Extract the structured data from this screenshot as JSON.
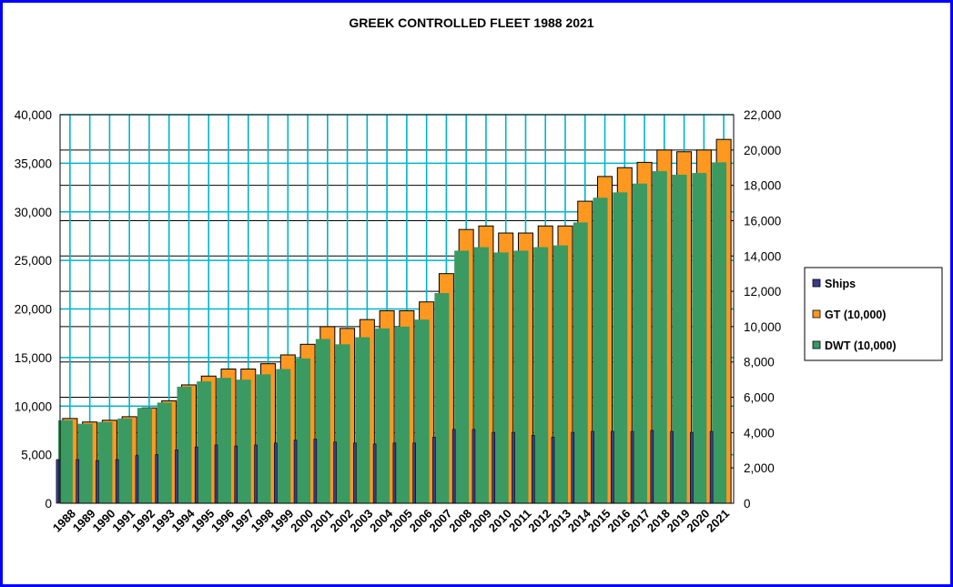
{
  "chart_data": {
    "type": "bar",
    "title": "GREEK CONTROLLED FLEET 1988 2021",
    "xlabel": "",
    "categories": [
      "1988",
      "1989",
      "1990",
      "1991",
      "1992",
      "1993",
      "1994",
      "1995",
      "1996",
      "1997",
      "1998",
      "1999",
      "2000",
      "2001",
      "2002",
      "2003",
      "2004",
      "2005",
      "2006",
      "2007",
      "2008",
      "2009",
      "2010",
      "2011",
      "2012",
      "2013",
      "2014",
      "2015",
      "2016",
      "2017",
      "2018",
      "2019",
      "2020",
      "2021"
    ],
    "left_axis": {
      "ylim": [
        0,
        40000
      ],
      "ticks": [
        "0",
        "5,000",
        "10,000",
        "15,000",
        "20,000",
        "25,000",
        "30,000",
        "35,000",
        "40,000"
      ]
    },
    "right_axis": {
      "ylim": [
        0,
        22000
      ],
      "ticks": [
        "0",
        "2,000",
        "4,000",
        "6,000",
        "8,000",
        "10,000",
        "12,000",
        "14,000",
        "16,000",
        "18,000",
        "20,000",
        "22,000"
      ]
    },
    "grid": true,
    "plot_background": "#ffffff",
    "gridline_color": "#00b4c8",
    "legend_placement": "right",
    "series": [
      {
        "name": "Ships",
        "axis": "left",
        "color": "#3c3c8c",
        "values": [
          4500,
          4500,
          4400,
          4500,
          4900,
          5000,
          5500,
          5800,
          6000,
          5900,
          6000,
          6200,
          6500,
          6600,
          6300,
          6200,
          6100,
          6200,
          6200,
          6800,
          7600,
          7600,
          7300,
          7300,
          7000,
          6800,
          7300,
          7400,
          7400,
          7400,
          7500,
          7400,
          7300,
          7400
        ]
      },
      {
        "name": "GT (10,000)",
        "axis": "right",
        "color": "#ff9820",
        "values": [
          4800,
          4600,
          4700,
          4900,
          5400,
          5800,
          6700,
          7200,
          7600,
          7600,
          7900,
          8400,
          9000,
          10000,
          9900,
          10400,
          10900,
          10900,
          11400,
          13000,
          15500,
          15700,
          15300,
          15300,
          15700,
          15700,
          17100,
          18500,
          19000,
          19300,
          20000,
          19900,
          20000,
          20600
        ]
      },
      {
        "name": "DWT (10,000)",
        "axis": "right",
        "color": "#3a9a62",
        "values": [
          4700,
          4500,
          4600,
          4800,
          5400,
          5700,
          6600,
          6900,
          7100,
          7000,
          7300,
          7600,
          8200,
          9300,
          9000,
          9400,
          9900,
          10000,
          10400,
          11900,
          14300,
          14500,
          14200,
          14300,
          14500,
          14600,
          15900,
          17300,
          17600,
          18100,
          18800,
          18600,
          18700,
          19300
        ]
      }
    ]
  }
}
